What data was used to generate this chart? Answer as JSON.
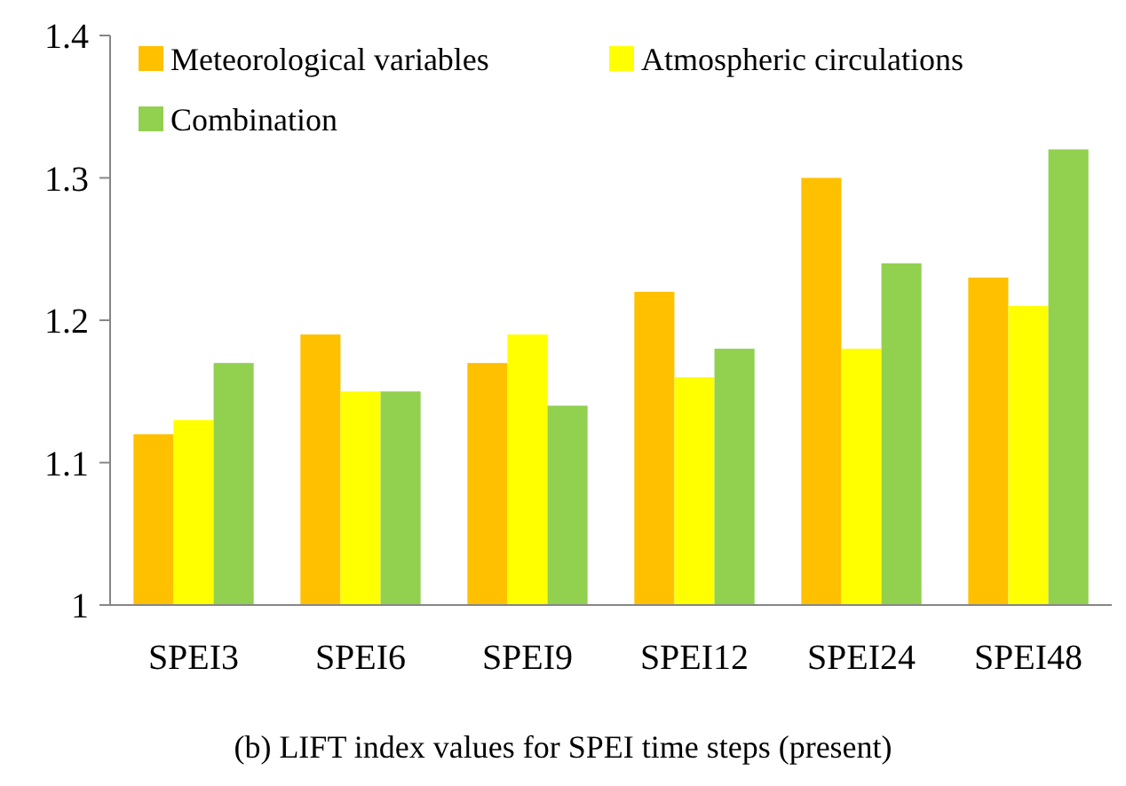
{
  "chart_data": {
    "type": "bar",
    "categories": [
      "SPEI3",
      "SPEI6",
      "SPEI9",
      "SPEI12",
      "SPEI24",
      "SPEI48"
    ],
    "series": [
      {
        "name": "Meteorological variables",
        "color": "#ffc000",
        "values": [
          1.12,
          1.19,
          1.17,
          1.22,
          1.3,
          1.23
        ]
      },
      {
        "name": "Atmospheric circulations",
        "color": "#ffff00",
        "values": [
          1.13,
          1.15,
          1.19,
          1.16,
          1.18,
          1.21
        ]
      },
      {
        "name": "Combination",
        "color": "#92d050",
        "values": [
          1.17,
          1.15,
          1.14,
          1.18,
          1.24,
          1.32
        ]
      }
    ],
    "ylim": [
      1,
      1.4
    ],
    "yticks": [
      1,
      1.1,
      1.2,
      1.3,
      1.4
    ],
    "grid": false,
    "legend": "top left",
    "annotations": [
      "(b) LIFT index values for SPEI time steps (present)"
    ]
  }
}
